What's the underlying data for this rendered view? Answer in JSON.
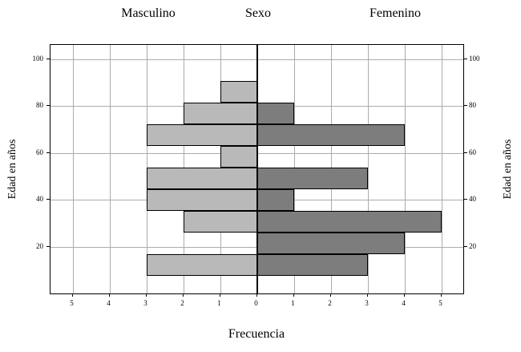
{
  "header": {
    "left": "Masculino",
    "center": "Sexo",
    "right": "Femenino"
  },
  "axes": {
    "y_left_label": "Edad en años",
    "y_right_label": "Edad en años",
    "x_label": "Frecuencia",
    "x_ticks": [
      "5",
      "4",
      "3",
      "2",
      "1",
      "0",
      "1",
      "2",
      "3",
      "4",
      "5"
    ],
    "y_ticks": [
      "20",
      "40",
      "60",
      "80",
      "100"
    ]
  },
  "colors": {
    "masculino": "#b9b9b9",
    "femenino": "#7d7d7d",
    "grid": "#ababab",
    "axis": "#000000"
  },
  "chart_data": {
    "type": "bar",
    "subtype": "population-pyramid",
    "title": "Sexo",
    "xlabel": "Frecuencia",
    "ylabel": "Edad en años",
    "grid": true,
    "age_bin_centers": [
      90,
      80,
      70,
      60,
      50,
      40,
      30,
      20,
      10
    ],
    "series": [
      {
        "name": "Masculino",
        "side": "left",
        "values": [
          1,
          2,
          3,
          1,
          3,
          3,
          2,
          0,
          3
        ]
      },
      {
        "name": "Femenino",
        "side": "right",
        "values": [
          0,
          1,
          4,
          0,
          3,
          1,
          5,
          4,
          3
        ]
      }
    ],
    "xlim": [
      -5.6,
      5.6
    ],
    "ylim": [
      0,
      106
    ]
  }
}
